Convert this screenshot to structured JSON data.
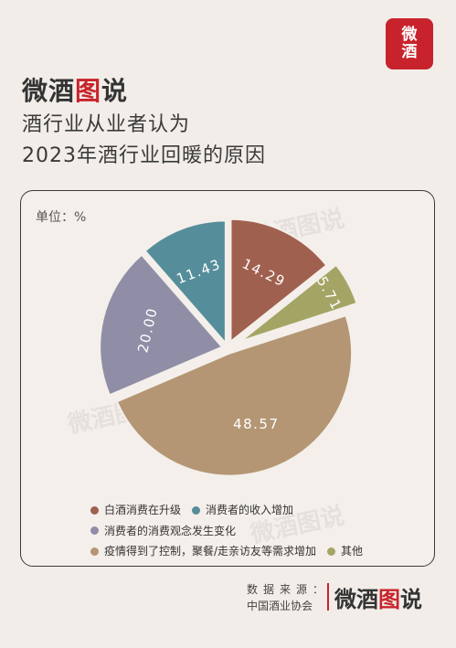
{
  "seal": {
    "text_top": "微",
    "text_bottom": "酒"
  },
  "brand": {
    "part1": "微酒",
    "part2": "图",
    "part3": "说"
  },
  "title": {
    "line1": "酒行业从业者认为",
    "line2": "2023年酒行业回暖的原因"
  },
  "unit_label": "单位：%",
  "watermark": "微酒图说",
  "colors": {
    "accent": "#c8232c",
    "background": "#f2ede8"
  },
  "chart_data": {
    "type": "pie",
    "unit": "%",
    "slices": [
      {
        "label": "白酒消费在升级",
        "value": 14.29,
        "value_label": "14.29",
        "color": "#a0604f"
      },
      {
        "label": "其他",
        "value": 5.71,
        "value_label": "5.71",
        "color": "#a4a565"
      },
      {
        "label": "疫情得到了控制，聚餐/走亲访友等需求增加",
        "value": 48.57,
        "value_label": "48.57",
        "color": "#b49674"
      },
      {
        "label": "消费者的消费观念发生变化",
        "value": 20.0,
        "value_label": "20.00",
        "color": "#8f8ea6"
      },
      {
        "label": "消费者的收入增加",
        "value": 11.43,
        "value_label": "11.43",
        "color": "#558e9a"
      }
    ],
    "start_angle_deg": 0,
    "direction": "clockwise",
    "legend": [
      {
        "label": "白酒消费在升级",
        "color": "#a0604f"
      },
      {
        "label": "消费者的收入增加",
        "color": "#558e9a"
      },
      {
        "label": "消费者的消费观念发生变化",
        "color": "#8f8ea6"
      },
      {
        "label": "疫情得到了控制，聚餐/走亲访友等需求增加",
        "color": "#b49674"
      },
      {
        "label": "其他",
        "color": "#a4a565"
      }
    ],
    "legend_placement": "bottom"
  },
  "footer": {
    "source_label": "数据来源：",
    "source_value": "中国酒业协会",
    "brand_part1": "微酒",
    "brand_part2": "图",
    "brand_part3": "说"
  }
}
